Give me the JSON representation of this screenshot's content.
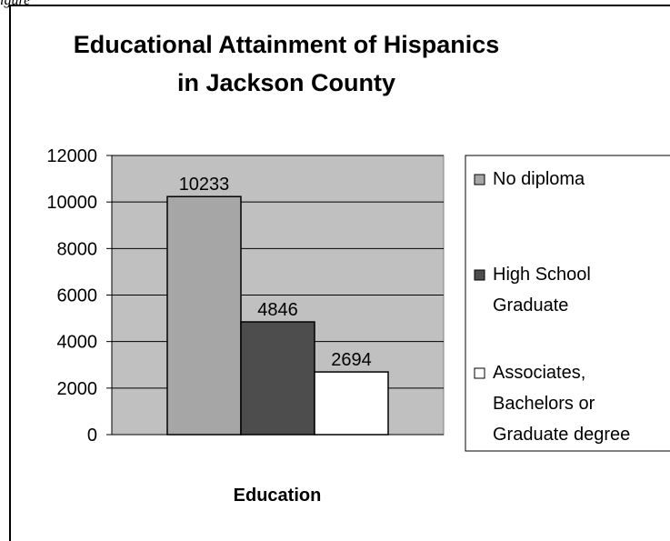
{
  "figure_label": "igure",
  "chart_data": {
    "type": "bar",
    "title_lines": [
      "Educational Attainment of Hispanics",
      "in Jackson County"
    ],
    "xlabel": "Education",
    "ylabel": "",
    "ylim": [
      0,
      12000
    ],
    "yticks": [
      0,
      2000,
      4000,
      6000,
      8000,
      10000,
      12000
    ],
    "grid": true,
    "legend_position": "right",
    "series": [
      {
        "name": "No diploma",
        "legend_lines": [
          "No diploma"
        ],
        "value": 10233,
        "color": "#a6a6a6"
      },
      {
        "name": "High School Graduate",
        "legend_lines": [
          "High School",
          "Graduate"
        ],
        "value": 4846,
        "color": "#4d4d4d"
      },
      {
        "name": "Associates, Bachelors or Graduate degree",
        "legend_lines": [
          "Associates,",
          "Bachelors or",
          "Graduate degree"
        ],
        "value": 2694,
        "color": "#ffffff"
      }
    ],
    "plot_background": "#c0c0c0"
  }
}
